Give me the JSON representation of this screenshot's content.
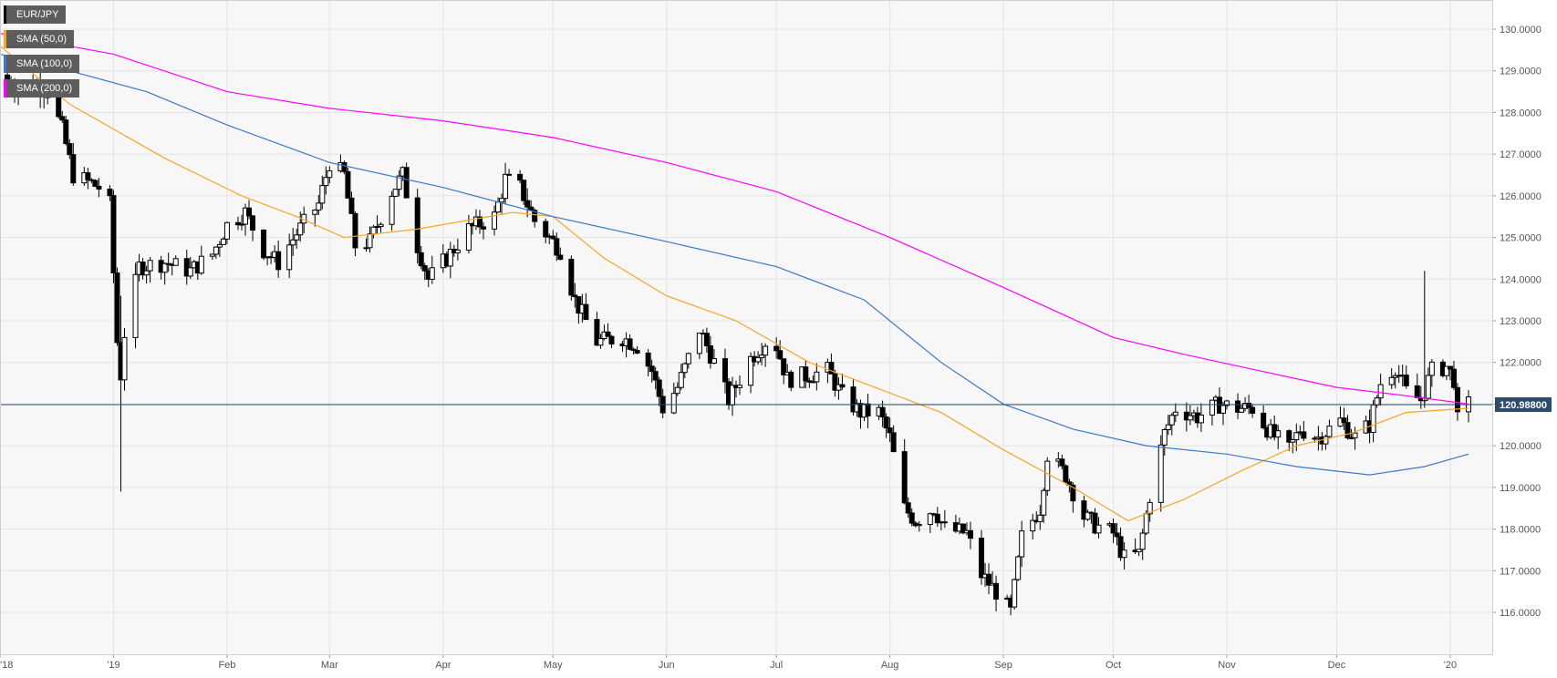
{
  "chart_data": {
    "type": "candlestick",
    "symbol": "EUR/JPY",
    "timeframe": "daily",
    "last_price": "120.98800",
    "ylim": [
      115.0,
      131.0
    ],
    "y_ticks": [
      "130.0000",
      "129.0000",
      "128.0000",
      "127.0000",
      "126.0000",
      "125.0000",
      "124.0000",
      "123.0000",
      "122.0000",
      "121.0000",
      "120.0000",
      "119.0000",
      "118.0000",
      "117.0000",
      "116.0000"
    ],
    "y_tick_values": [
      130,
      129,
      128,
      127,
      126,
      125,
      124,
      123,
      122,
      121,
      120,
      119,
      118,
      117,
      116
    ],
    "x_ticks": [
      "'18",
      "'19",
      "Feb",
      "Mar",
      "Apr",
      "May",
      "Jun",
      "Jul",
      "Aug",
      "Sep",
      "Oct",
      "Nov",
      "Dec",
      "'20"
    ],
    "x_tick_dates": [
      "2018-12-01",
      "2019-01-01",
      "2019-02-01",
      "2019-03-01",
      "2019-04-01",
      "2019-05-01",
      "2019-06-01",
      "2019-07-01",
      "2019-08-01",
      "2019-09-01",
      "2019-10-01",
      "2019-11-01",
      "2019-12-01",
      "2020-01-01"
    ],
    "date_range": [
      "2018-12-01",
      "2020-01-06"
    ],
    "grid": true,
    "legend_position": "top-left",
    "legend": [
      {
        "label": "EUR/JPY",
        "color": "#000000"
      },
      {
        "label": "SMA (50,0)",
        "color": "#f5a623"
      },
      {
        "label": "SMA (100,0)",
        "color": "#3a78c9"
      },
      {
        "label": "SMA (200,0)",
        "color": "#ff00ff"
      }
    ],
    "price_anchors": [
      [
        "2018-12-01",
        128.9
      ],
      [
        "2018-12-05",
        128.6
      ],
      [
        "2018-12-10",
        128.7
      ],
      [
        "2018-12-14",
        128.5
      ],
      [
        "2018-12-18",
        127.6
      ],
      [
        "2018-12-21",
        126.5
      ],
      [
        "2018-12-26",
        126.3
      ],
      [
        "2018-12-28",
        126.2
      ],
      [
        "2018-12-31",
        125.8
      ],
      [
        "2019-01-02",
        122.5
      ],
      [
        "2019-01-03",
        121.7
      ],
      [
        "2019-01-04",
        122.7
      ],
      [
        "2019-01-08",
        124.3
      ],
      [
        "2019-01-15",
        124.4
      ],
      [
        "2019-01-22",
        124.2
      ],
      [
        "2019-01-28",
        124.6
      ],
      [
        "2019-02-01",
        125.3
      ],
      [
        "2019-02-06",
        125.6
      ],
      [
        "2019-02-11",
        124.7
      ],
      [
        "2019-02-15",
        124.4
      ],
      [
        "2019-02-20",
        125.1
      ],
      [
        "2019-02-26",
        125.8
      ],
      [
        "2019-03-01",
        126.8
      ],
      [
        "2019-03-05",
        126.5
      ],
      [
        "2019-03-08",
        124.8
      ],
      [
        "2019-03-12",
        124.9
      ],
      [
        "2019-03-18",
        126.1
      ],
      [
        "2019-03-21",
        126.5
      ],
      [
        "2019-03-25",
        124.8
      ],
      [
        "2019-03-28",
        124.0
      ],
      [
        "2019-04-02",
        124.5
      ],
      [
        "2019-04-08",
        125.2
      ],
      [
        "2019-04-15",
        125.5
      ],
      [
        "2019-04-18",
        126.4
      ],
      [
        "2019-04-22",
        126.2
      ],
      [
        "2019-04-26",
        125.4
      ],
      [
        "2019-04-30",
        125.0
      ],
      [
        "2019-05-03",
        124.7
      ],
      [
        "2019-05-07",
        123.5
      ],
      [
        "2019-05-13",
        122.5
      ],
      [
        "2019-05-20",
        122.6
      ],
      [
        "2019-05-24",
        122.4
      ],
      [
        "2019-05-28",
        121.8
      ],
      [
        "2019-05-31",
        120.9
      ],
      [
        "2019-06-04",
        121.4
      ],
      [
        "2019-06-10",
        122.8
      ],
      [
        "2019-06-14",
        122.0
      ],
      [
        "2019-06-18",
        121.1
      ],
      [
        "2019-06-24",
        122.1
      ],
      [
        "2019-06-28",
        122.5
      ],
      [
        "2019-07-01",
        122.4
      ],
      [
        "2019-07-04",
        121.6
      ],
      [
        "2019-07-10",
        121.7
      ],
      [
        "2019-07-15",
        121.8
      ],
      [
        "2019-07-19",
        121.2
      ],
      [
        "2019-07-24",
        120.8
      ],
      [
        "2019-07-29",
        120.8
      ],
      [
        "2019-08-01",
        120.2
      ],
      [
        "2019-08-05",
        118.5
      ],
      [
        "2019-08-08",
        118.2
      ],
      [
        "2019-08-13",
        118.5
      ],
      [
        "2019-08-16",
        118.0
      ],
      [
        "2019-08-22",
        117.9
      ],
      [
        "2019-08-26",
        116.9
      ],
      [
        "2019-08-30",
        116.5
      ],
      [
        "2019-09-03",
        116.0
      ],
      [
        "2019-09-06",
        117.8
      ],
      [
        "2019-09-11",
        118.5
      ],
      [
        "2019-09-13",
        119.8
      ],
      [
        "2019-09-18",
        119.3
      ],
      [
        "2019-09-23",
        118.3
      ],
      [
        "2019-09-26",
        118.1
      ],
      [
        "2019-10-01",
        117.9
      ],
      [
        "2019-10-04",
        117.3
      ],
      [
        "2019-10-08",
        117.4
      ],
      [
        "2019-10-11",
        118.8
      ],
      [
        "2019-10-15",
        120.3
      ],
      [
        "2019-10-18",
        120.9
      ],
      [
        "2019-10-24",
        120.7
      ],
      [
        "2019-10-30",
        121.0
      ],
      [
        "2019-11-04",
        120.9
      ],
      [
        "2019-11-08",
        120.9
      ],
      [
        "2019-11-13",
        120.3
      ],
      [
        "2019-11-18",
        119.9
      ],
      [
        "2019-11-21",
        120.4
      ],
      [
        "2019-11-26",
        120.2
      ],
      [
        "2019-12-02",
        120.6
      ],
      [
        "2019-12-06",
        120.2
      ],
      [
        "2019-12-10",
        120.5
      ],
      [
        "2019-12-13",
        121.5
      ],
      [
        "2019-12-17",
        121.9
      ],
      [
        "2019-12-20",
        121.3
      ],
      [
        "2019-12-24",
        121.1
      ],
      [
        "2019-12-27",
        121.8
      ],
      [
        "2019-12-31",
        121.9
      ],
      [
        "2020-01-02",
        121.6
      ],
      [
        "2020-01-03",
        120.6
      ],
      [
        "2020-01-06",
        120.99
      ]
    ],
    "sma_50": [
      [
        "2018-12-01",
        129.6
      ],
      [
        "2018-12-20",
        128.2
      ],
      [
        "2019-01-15",
        126.9
      ],
      [
        "2019-02-05",
        126.0
      ],
      [
        "2019-02-20",
        125.5
      ],
      [
        "2019-03-05",
        125.0
      ],
      [
        "2019-03-25",
        125.2
      ],
      [
        "2019-04-20",
        125.6
      ],
      [
        "2019-05-01",
        125.5
      ],
      [
        "2019-05-15",
        124.5
      ],
      [
        "2019-06-01",
        123.6
      ],
      [
        "2019-06-20",
        123.0
      ],
      [
        "2019-07-10",
        122.0
      ],
      [
        "2019-07-25",
        121.5
      ],
      [
        "2019-08-15",
        120.8
      ],
      [
        "2019-09-01",
        119.9
      ],
      [
        "2019-09-20",
        119.0
      ],
      [
        "2019-10-05",
        118.2
      ],
      [
        "2019-10-20",
        118.7
      ],
      [
        "2019-11-05",
        119.4
      ],
      [
        "2019-11-20",
        120.0
      ],
      [
        "2019-12-05",
        120.3
      ],
      [
        "2019-12-20",
        120.8
      ],
      [
        "2020-01-06",
        120.9
      ]
    ],
    "sma_100": [
      [
        "2018-12-01",
        129.4
      ],
      [
        "2018-12-20",
        129.0
      ],
      [
        "2019-01-10",
        128.5
      ],
      [
        "2019-02-01",
        127.7
      ],
      [
        "2019-03-01",
        126.8
      ],
      [
        "2019-04-01",
        126.2
      ],
      [
        "2019-05-01",
        125.5
      ],
      [
        "2019-06-01",
        124.9
      ],
      [
        "2019-07-01",
        124.3
      ],
      [
        "2019-07-25",
        123.5
      ],
      [
        "2019-08-15",
        122.0
      ],
      [
        "2019-09-01",
        121.0
      ],
      [
        "2019-09-20",
        120.4
      ],
      [
        "2019-10-10",
        120.0
      ],
      [
        "2019-11-01",
        119.8
      ],
      [
        "2019-11-20",
        119.5
      ],
      [
        "2019-12-10",
        119.3
      ],
      [
        "2019-12-25",
        119.5
      ],
      [
        "2020-01-06",
        119.8
      ]
    ],
    "sma_200": [
      [
        "2018-12-01",
        129.9
      ],
      [
        "2019-01-01",
        129.4
      ],
      [
        "2019-02-01",
        128.5
      ],
      [
        "2019-03-01",
        128.1
      ],
      [
        "2019-04-01",
        127.8
      ],
      [
        "2019-05-01",
        127.4
      ],
      [
        "2019-06-01",
        126.8
      ],
      [
        "2019-07-01",
        126.1
      ],
      [
        "2019-08-01",
        125.0
      ],
      [
        "2019-09-01",
        123.8
      ],
      [
        "2019-10-01",
        122.6
      ],
      [
        "2019-10-20",
        122.2
      ],
      [
        "2019-11-10",
        121.8
      ],
      [
        "2019-12-01",
        121.4
      ],
      [
        "2019-12-20",
        121.2
      ],
      [
        "2020-01-06",
        121.0
      ]
    ]
  }
}
